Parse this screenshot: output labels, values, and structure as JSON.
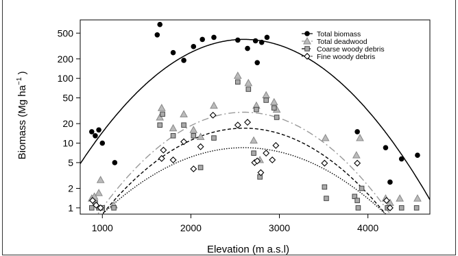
{
  "chart_data": {
    "type": "scatter",
    "xlabel": "Elevation (m a.s.l)",
    "ylabel": "Biomass (Mg ha",
    "ylabel_sup": "−1",
    "ylabel_close": ")",
    "xlim": [
      750,
      4700
    ],
    "ylim": [
      0.8,
      800
    ],
    "y_scale": "log",
    "x_ticks": [
      1000,
      2000,
      3000,
      4000
    ],
    "y_ticks": [
      1,
      2,
      5,
      10,
      20,
      50,
      100,
      200,
      500
    ],
    "legend_position": "top-right",
    "colors": {
      "total_biomass": "#000000",
      "total_deadwood": "#999999",
      "coarse": "#888888",
      "fine": "#000000"
    },
    "series": [
      {
        "name": "Total biomass",
        "marker": "filled-circle",
        "points": [
          [
            880,
            15
          ],
          [
            920,
            13
          ],
          [
            960,
            16
          ],
          [
            1000,
            10
          ],
          [
            1140,
            5
          ],
          [
            1620,
            470
          ],
          [
            1650,
            680
          ],
          [
            1800,
            250
          ],
          [
            1920,
            190
          ],
          [
            2030,
            310
          ],
          [
            2130,
            400
          ],
          [
            2260,
            430
          ],
          [
            2530,
            390
          ],
          [
            2640,
            290
          ],
          [
            2730,
            380
          ],
          [
            2750,
            175
          ],
          [
            2800,
            360
          ],
          [
            2860,
            430
          ],
          [
            3880,
            15
          ],
          [
            4200,
            8.5
          ],
          [
            4250,
            2.5
          ],
          [
            4380,
            5.7
          ],
          [
            4560,
            6.5
          ]
        ],
        "fit_line": "solid"
      },
      {
        "name": "Total deadwood",
        "marker": "triangle",
        "points": [
          [
            880,
            1.4
          ],
          [
            910,
            1.5
          ],
          [
            960,
            1.7
          ],
          [
            980,
            2.7
          ],
          [
            1130,
            1.1
          ],
          [
            1650,
            25
          ],
          [
            1670,
            35
          ],
          [
            1800,
            17
          ],
          [
            1920,
            28
          ],
          [
            2030,
            16
          ],
          [
            2110,
            12.5
          ],
          [
            2260,
            38
          ],
          [
            2530,
            110
          ],
          [
            2650,
            85
          ],
          [
            2710,
            11
          ],
          [
            2740,
            38
          ],
          [
            2780,
            5.5
          ],
          [
            2850,
            55
          ],
          [
            2940,
            43
          ],
          [
            2970,
            33
          ],
          [
            3520,
            12
          ],
          [
            3870,
            6.5
          ],
          [
            3910,
            12
          ],
          [
            4200,
            1.4
          ],
          [
            4250,
            1.2
          ],
          [
            4360,
            1.4
          ],
          [
            4560,
            1.4
          ]
        ],
        "fit_line": "long-dash"
      },
      {
        "name": "Coarse woody debris",
        "marker": "square",
        "points": [
          [
            880,
            1.0
          ],
          [
            920,
            1.2
          ],
          [
            960,
            1.0
          ],
          [
            1000,
            1.0
          ],
          [
            1130,
            1.0
          ],
          [
            1650,
            19
          ],
          [
            1680,
            28
          ],
          [
            1800,
            13
          ],
          [
            1920,
            19
          ],
          [
            2030,
            13
          ],
          [
            2110,
            4.2
          ],
          [
            2260,
            12
          ],
          [
            2530,
            88
          ],
          [
            2650,
            68
          ],
          [
            2710,
            7
          ],
          [
            2740,
            33
          ],
          [
            2780,
            3
          ],
          [
            2850,
            46
          ],
          [
            2940,
            35
          ],
          [
            2970,
            25
          ],
          [
            3510,
            2.1
          ],
          [
            3530,
            1.4
          ],
          [
            3850,
            1.5
          ],
          [
            3880,
            1.3
          ],
          [
            3890,
            1.0
          ],
          [
            3930,
            2.0
          ],
          [
            4220,
            1.0
          ],
          [
            4380,
            1.0
          ],
          [
            4550,
            1.0
          ]
        ],
        "fit_line": "short-dash"
      },
      {
        "name": "Fine woody debris",
        "marker": "open-diamond",
        "points": [
          [
            890,
            1.3
          ],
          [
            930,
            1.1
          ],
          [
            980,
            1.0
          ],
          [
            1670,
            5.8
          ],
          [
            1690,
            7.8
          ],
          [
            1800,
            5.5
          ],
          [
            1920,
            10.5
          ],
          [
            2030,
            4.0
          ],
          [
            2110,
            8.8
          ],
          [
            2250,
            27
          ],
          [
            2530,
            19
          ],
          [
            2640,
            21
          ],
          [
            2720,
            5.0
          ],
          [
            2750,
            5.3
          ],
          [
            2790,
            3.5
          ],
          [
            2850,
            7.0
          ],
          [
            2920,
            5.5
          ],
          [
            2960,
            9.2
          ],
          [
            3510,
            4.9
          ],
          [
            3880,
            4.9
          ],
          [
            4210,
            1.3
          ],
          [
            4250,
            1.0
          ]
        ],
        "fit_line": "dotted"
      }
    ],
    "fits": [
      {
        "series": "Total biomass",
        "peak_x": 2600,
        "peak_y": 400,
        "y_at_750": 4.8
      },
      {
        "series": "Total deadwood",
        "peak_x": 2600,
        "peak_y": 30,
        "y_at_1000": 1.0
      },
      {
        "series": "Coarse woody debris",
        "peak_x": 2600,
        "peak_y": 17,
        "y_at_1000": 0.8
      },
      {
        "series": "Fine woody debris",
        "peak_x": 2600,
        "peak_y": 8.5,
        "y_at_1000": 0.8
      }
    ]
  }
}
